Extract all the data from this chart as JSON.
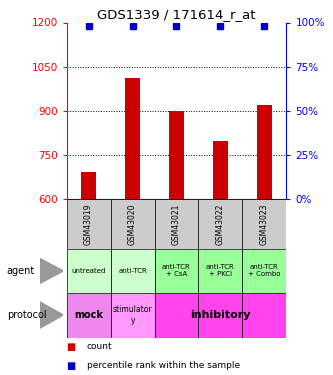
{
  "title": "GDS1339 / 171614_r_at",
  "samples": [
    "GSM43019",
    "GSM43020",
    "GSM43021",
    "GSM43022",
    "GSM43023"
  ],
  "bar_values": [
    690,
    1012,
    900,
    795,
    918
  ],
  "percentile_values": [
    98,
    98,
    98,
    98,
    98
  ],
  "bar_color": "#cc0000",
  "dot_color": "#0000cc",
  "ylim_left": [
    600,
    1200
  ],
  "ylim_right": [
    0,
    100
  ],
  "yticks_left": [
    600,
    750,
    900,
    1050,
    1200
  ],
  "yticks_right": [
    0,
    25,
    50,
    75,
    100
  ],
  "agent_labels": [
    "untreated",
    "anti-TCR",
    "anti-TCR\n+ CsA",
    "anti-TCR\n+ PKCi",
    "anti-TCR\n+ Combo"
  ],
  "agent_bg_light": "#ccffcc",
  "agent_bg_dark": "#99ff99",
  "protocol_mock_bg": "#ee88ee",
  "protocol_stim_bg": "#ff99ff",
  "protocol_inhib_bg": "#ff44ee",
  "sample_bg": "#cccccc",
  "legend_count_color": "#cc0000",
  "legend_pct_color": "#0000cc",
  "fig_width": 3.33,
  "fig_height": 3.75,
  "dpi": 100
}
